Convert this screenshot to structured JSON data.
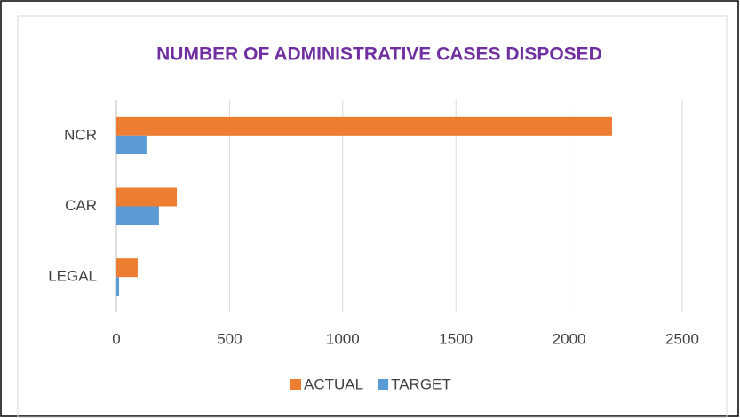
{
  "chart_data": {
    "type": "hbar",
    "title": "NUMBER OF ADMINISTRATIVE CASES DISPOSED",
    "categories": [
      "NCR",
      "CAR",
      "LEGAL"
    ],
    "series": [
      {
        "name": "ACTUAL",
        "color": "#ed7d31",
        "values": [
          2190,
          267,
          94
        ]
      },
      {
        "name": "TARGET",
        "color": "#5b9bd5",
        "values": [
          133,
          188,
          12
        ]
      }
    ],
    "xlim": [
      0,
      2500
    ],
    "xticks": [
      0,
      500,
      1000,
      1500,
      2000,
      2500
    ],
    "grid": true,
    "legend": "bottom"
  }
}
